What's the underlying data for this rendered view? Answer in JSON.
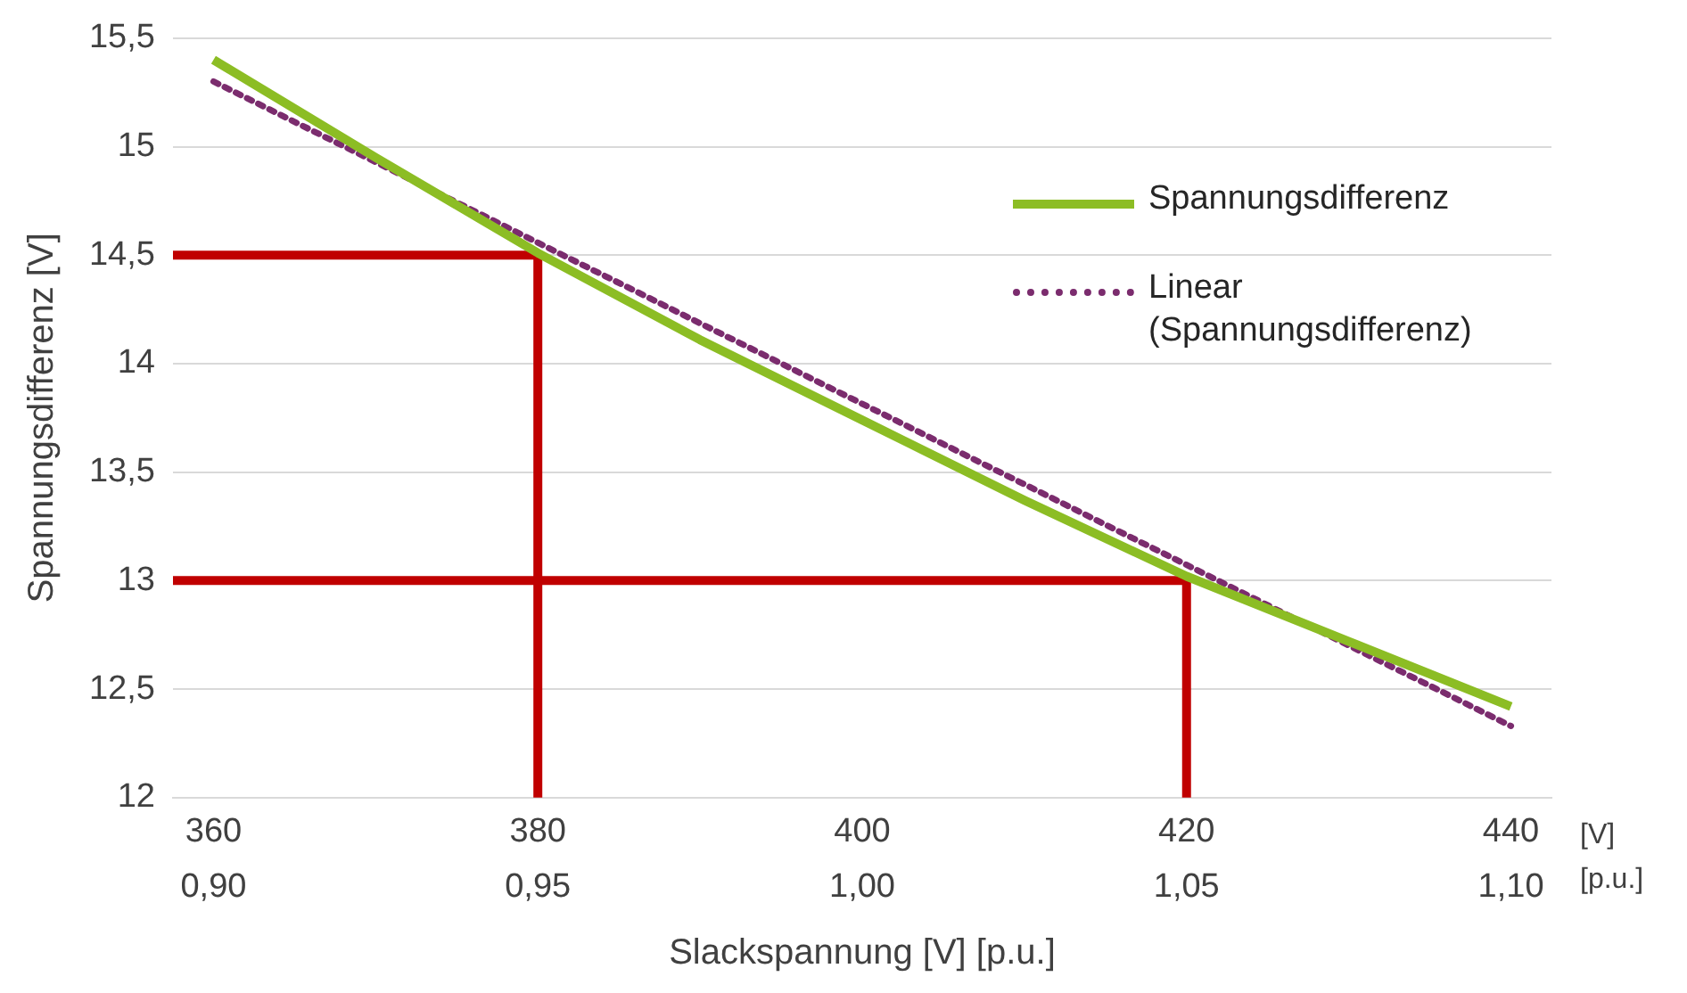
{
  "chart_data": {
    "type": "line",
    "xlabel": "Slackspannung [V] [p.u.]",
    "ylabel": "Spannungsdifferenz [V]",
    "xlim": [
      357.5,
      442.5
    ],
    "xticks": [
      360,
      380,
      400,
      420,
      440
    ],
    "x2lim": [
      0.89375,
      1.10625
    ],
    "x2ticks": [
      {
        "value": 0.9,
        "label": "0,90"
      },
      {
        "value": 0.95,
        "label": "0,95"
      },
      {
        "value": 1,
        "label": "1,00"
      },
      {
        "value": 1.05,
        "label": "1,05"
      },
      {
        "value": 1.1,
        "label": "1,10"
      }
    ],
    "ylim": [
      12,
      15.5
    ],
    "yticks": [
      12,
      {
        "value": 12.5,
        "label": "12,5"
      },
      13,
      {
        "value": 13.5,
        "label": "13,5"
      },
      14,
      {
        "value": 14.5,
        "label": "14,5"
      },
      15,
      {
        "value": 15.5,
        "label": "15,5"
      }
    ],
    "grid": "y",
    "legend": "right",
    "marker": "none",
    "annotations": [
      "[V]\n[p.u.]"
    ],
    "series": [
      {
        "name": "Spannungsdifferenz",
        "color": "#8cbd24",
        "line_style": "solid",
        "x": [
          360,
          370,
          380,
          390,
          400,
          410,
          420,
          430,
          440
        ],
        "values": [
          15.4,
          14.95,
          14.51,
          14.11,
          13.74,
          13.37,
          13.02,
          12.72,
          12.42
        ]
      },
      {
        "name": "Linear\n(Spannungsdifferenz)",
        "color": "#7b2c6e",
        "line_style": "dotted",
        "x": [
          360,
          440
        ],
        "values": [
          15.3,
          12.33
        ]
      },
      {
        "color": "#c00000",
        "line_style": "solid",
        "x": [
          357.5,
          380,
          380
        ],
        "values": [
          14.5,
          14.5,
          12
        ]
      },
      {
        "color": "#c00000",
        "line_style": "solid",
        "x": [
          357.5,
          420,
          420
        ],
        "values": [
          13,
          13,
          12
        ]
      }
    ]
  }
}
